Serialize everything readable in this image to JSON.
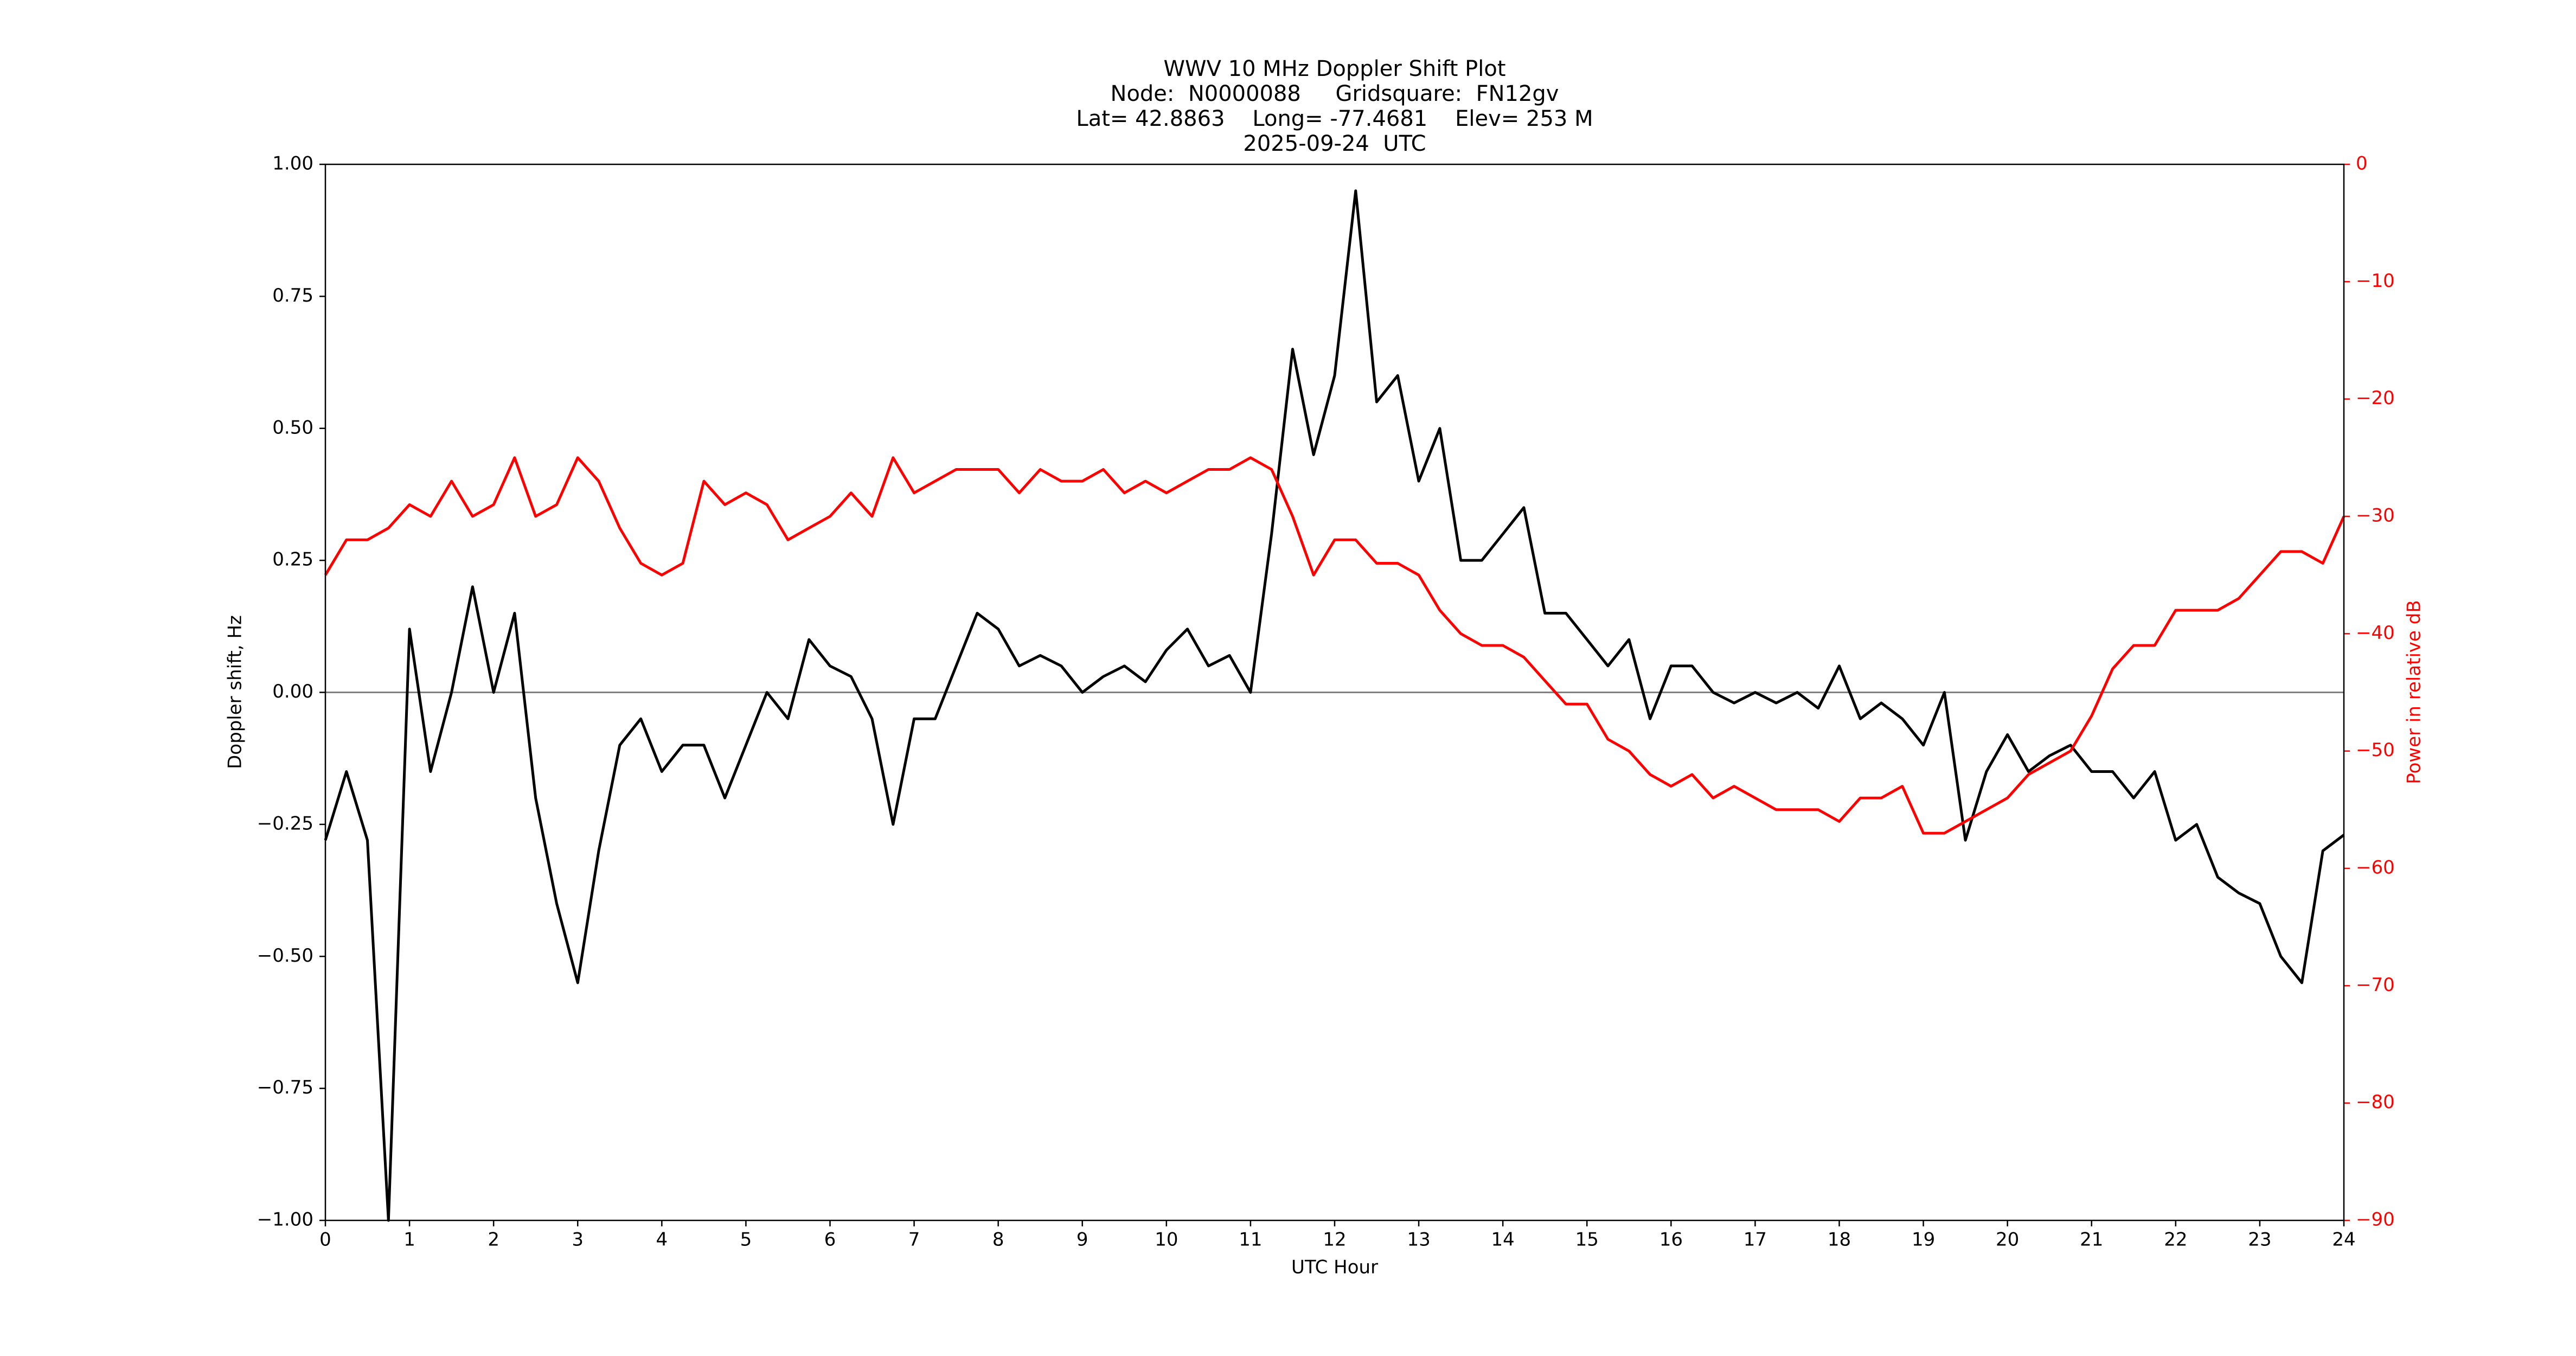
{
  "chart_data": {
    "type": "line",
    "title": [
      "WWV 10 MHz Doppler Shift Plot",
      "Node:  N0000088     Gridsquare:  FN12gv",
      "Lat= 42.8863    Long= -77.4681    Elev= 253 M",
      "2025-09-24  UTC"
    ],
    "xlabel": "UTC Hour",
    "ylabel": "Doppler shift, Hz",
    "y2label": "Power in relative dB",
    "x": [
      0,
      0.25,
      0.5,
      0.75,
      1,
      1.25,
      1.5,
      1.75,
      2,
      2.25,
      2.5,
      2.75,
      3,
      3.25,
      3.5,
      3.75,
      4,
      4.25,
      4.5,
      4.75,
      5,
      5.25,
      5.5,
      5.75,
      6,
      6.25,
      6.5,
      6.75,
      7,
      7.25,
      7.5,
      7.75,
      8,
      8.25,
      8.5,
      8.75,
      9,
      9.25,
      9.5,
      9.75,
      10,
      10.25,
      10.5,
      10.75,
      11,
      11.25,
      11.5,
      11.75,
      12,
      12.25,
      12.5,
      12.75,
      13,
      13.25,
      13.5,
      13.75,
      14,
      14.25,
      14.5,
      14.75,
      15,
      15.25,
      15.5,
      15.75,
      16,
      16.25,
      16.5,
      16.75,
      17,
      17.25,
      17.5,
      17.75,
      18,
      18.25,
      18.5,
      18.75,
      19,
      19.25,
      19.5,
      19.75,
      20,
      20.25,
      20.5,
      20.75,
      21,
      21.25,
      21.5,
      21.75,
      22,
      22.25,
      22.5,
      22.75,
      23,
      23.25,
      23.5,
      23.75,
      24
    ],
    "series": [
      {
        "color": "#000000",
        "axis": "y",
        "values": [
          -0.28,
          -0.15,
          -0.28,
          -1.0,
          0.12,
          -0.15,
          0.0,
          0.2,
          0.0,
          0.15,
          -0.2,
          -0.4,
          -0.55,
          -0.3,
          -0.1,
          -0.05,
          -0.15,
          -0.1,
          -0.1,
          -0.2,
          -0.1,
          0.0,
          -0.05,
          0.1,
          0.05,
          0.03,
          -0.05,
          -0.25,
          -0.05,
          -0.05,
          0.05,
          0.15,
          0.12,
          0.05,
          0.07,
          0.05,
          0.0,
          0.03,
          0.05,
          0.02,
          0.08,
          0.12,
          0.05,
          0.07,
          0.0,
          0.3,
          0.65,
          0.45,
          0.6,
          0.95,
          0.55,
          0.6,
          0.4,
          0.5,
          0.25,
          0.25,
          0.3,
          0.35,
          0.15,
          0.15,
          0.1,
          0.05,
          0.1,
          -0.05,
          0.05,
          0.05,
          0.0,
          -0.02,
          0.0,
          -0.02,
          0.0,
          -0.03,
          0.05,
          -0.05,
          -0.02,
          -0.05,
          -0.1,
          0.0,
          -0.28,
          -0.15,
          -0.08,
          -0.15,
          -0.12,
          -0.1,
          -0.15,
          -0.15,
          -0.2,
          -0.15,
          -0.28,
          -0.25,
          -0.35,
          -0.38,
          -0.4,
          -0.5,
          -0.55,
          -0.3,
          -0.27
        ]
      },
      {
        "color": "#ff0000",
        "axis": "y2",
        "values": [
          -35,
          -32,
          -32,
          -31,
          -29,
          -30,
          -27,
          -30,
          -29,
          -25,
          -30,
          -29,
          -25,
          -27,
          -31,
          -34,
          -35,
          -34,
          -27,
          -29,
          -28,
          -29,
          -32,
          -31,
          -30,
          -28,
          -30,
          -25,
          -28,
          -27,
          -26,
          -26,
          -26,
          -28,
          -26,
          -27,
          -27,
          -26,
          -28,
          -27,
          -28,
          -27,
          -26,
          -26,
          -25,
          -26,
          -30,
          -35,
          -32,
          -32,
          -34,
          -34,
          -35,
          -38,
          -40,
          -41,
          -41,
          -42,
          -44,
          -46,
          -46,
          -49,
          -50,
          -52,
          -53,
          -52,
          -54,
          -53,
          -54,
          -55,
          -55,
          -55,
          -56,
          -54,
          -54,
          -53,
          -57,
          -57,
          -56,
          -55,
          -54,
          -52,
          -51,
          -50,
          -47,
          -43,
          -41,
          -41,
          -38,
          -38,
          -38,
          -37,
          -35,
          -33,
          -33,
          -34,
          -30
        ]
      }
    ],
    "hline": 0,
    "xlim": [
      0,
      24
    ],
    "xticks": [
      0,
      1,
      2,
      3,
      4,
      5,
      6,
      7,
      8,
      9,
      10,
      11,
      12,
      13,
      14,
      15,
      16,
      17,
      18,
      19,
      20,
      21,
      22,
      23,
      24
    ],
    "ylim": [
      -1,
      1
    ],
    "yticks": [
      {
        "value": -1,
        "label": "−1.00"
      },
      {
        "value": -0.75,
        "label": "−0.75"
      },
      {
        "value": -0.5,
        "label": "−0.50"
      },
      {
        "value": -0.25,
        "label": "−0.25"
      },
      {
        "value": 0,
        "label": "0.00"
      },
      {
        "value": 0.25,
        "label": "0.25"
      },
      {
        "value": 0.5,
        "label": "0.50"
      },
      {
        "value": 0.75,
        "label": "0.75"
      },
      {
        "value": 1,
        "label": "1.00"
      }
    ],
    "y2lim": [
      -90,
      0
    ],
    "y2ticks": [
      {
        "value": -90,
        "label": "−90"
      },
      {
        "value": -80,
        "label": "−80"
      },
      {
        "value": -70,
        "label": "−70"
      },
      {
        "value": -60,
        "label": "−60"
      },
      {
        "value": -50,
        "label": "−50"
      },
      {
        "value": -40,
        "label": "−40"
      },
      {
        "value": -30,
        "label": "−30"
      },
      {
        "value": -20,
        "label": "−20"
      },
      {
        "value": -10,
        "label": "−10"
      },
      0
    ],
    "y2color": "#ff0000"
  }
}
